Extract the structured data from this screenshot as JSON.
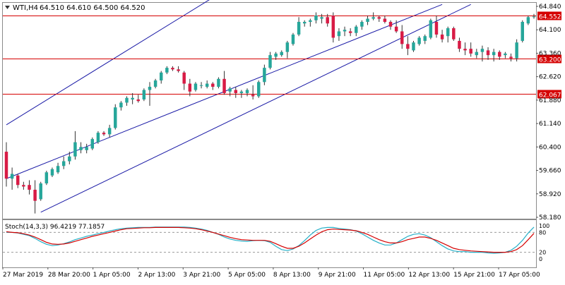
{
  "window": {
    "symbol_label": "WTI,H4",
    "ohlc_readout": "64.510 64.610 64.500 64.520",
    "stoch_label": "Stoch(14,3,3) 96.4219 77.1857"
  },
  "colors": {
    "bull": "#26a69a",
    "bear": "#d81b45",
    "wick": "#333333",
    "channel": "#1a1aa6",
    "hline": "#d50000",
    "stoch_main": "#26b0c8",
    "stoch_signal": "#d50000",
    "grid": "#cccccc"
  },
  "chart_data": [
    {
      "type": "candlestick",
      "title": "WTI,H4",
      "ylim": [
        58.18,
        64.84
      ],
      "y_ticks": [
        "64.840",
        "64.100",
        "63.360",
        "62.620",
        "61.880",
        "61.140",
        "60.400",
        "59.660",
        "58.920",
        "58.180"
      ],
      "x_ticks": [
        "27 Mar 2019",
        "28 Mar 20:00",
        "1 Apr 05:00",
        "2 Apr 13:00",
        "3 Apr 21:00",
        "5 Apr 05:00",
        "8 Apr 13:00",
        "9 Apr 21:00",
        "11 Apr 05:00",
        "12 Apr 13:00",
        "15 Apr 21:00",
        "17 Apr 05:00"
      ],
      "horizontal_lines": [
        {
          "label": "64.552",
          "value": 64.552
        },
        {
          "label": "63.200",
          "value": 63.2
        },
        {
          "label": "62.067",
          "value": 62.067
        }
      ],
      "channel_lines": [
        {
          "x1": 0,
          "y1": 61.1,
          "x2": 39,
          "y2": 65.45
        },
        {
          "x1": 0,
          "y1": 59.4,
          "x2": 76,
          "y2": 64.9
        },
        {
          "x1": 6,
          "y1": 58.34,
          "x2": 81,
          "y2": 64.9
        }
      ],
      "candles": [
        [
          60.25,
          60.55,
          59.15,
          59.4
        ],
        [
          59.4,
          59.75,
          59.05,
          59.55
        ],
        [
          59.5,
          59.55,
          59.1,
          59.2
        ],
        [
          59.2,
          59.3,
          59.05,
          59.15
        ],
        [
          59.2,
          59.35,
          58.9,
          59.05
        ],
        [
          59.05,
          59.35,
          58.3,
          58.7
        ],
        [
          58.75,
          59.3,
          58.7,
          59.25
        ],
        [
          59.25,
          59.65,
          59.2,
          59.6
        ],
        [
          59.5,
          59.75,
          59.45,
          59.7
        ],
        [
          59.6,
          59.9,
          59.55,
          59.8
        ],
        [
          59.8,
          60.1,
          59.7,
          59.95
        ],
        [
          59.95,
          60.25,
          59.85,
          60.1
        ],
        [
          60.1,
          60.9,
          60.0,
          60.55
        ],
        [
          60.3,
          60.55,
          60.2,
          60.4
        ],
        [
          60.3,
          60.5,
          60.2,
          60.4
        ],
        [
          60.35,
          60.7,
          60.3,
          60.65
        ],
        [
          60.55,
          60.9,
          60.5,
          60.85
        ],
        [
          60.85,
          60.9,
          60.75,
          60.8
        ],
        [
          60.8,
          61.1,
          60.7,
          61.0
        ],
        [
          61.0,
          61.75,
          60.95,
          61.65
        ],
        [
          61.65,
          61.85,
          61.55,
          61.8
        ],
        [
          61.8,
          62.0,
          61.7,
          61.95
        ],
        [
          61.9,
          62.1,
          61.75,
          61.95
        ],
        [
          61.9,
          62.05,
          61.8,
          61.85
        ],
        [
          61.9,
          62.25,
          61.85,
          62.2
        ],
        [
          62.2,
          62.45,
          61.7,
          62.3
        ],
        [
          62.3,
          62.55,
          62.25,
          62.5
        ],
        [
          62.5,
          62.8,
          62.4,
          62.75
        ],
        [
          62.75,
          62.95,
          62.7,
          62.9
        ],
        [
          62.9,
          62.95,
          62.8,
          62.85
        ],
        [
          62.85,
          62.95,
          62.75,
          62.8
        ],
        [
          62.75,
          62.8,
          62.2,
          62.4
        ],
        [
          62.4,
          62.55,
          62.0,
          62.15
        ],
        [
          62.2,
          62.45,
          62.15,
          62.4
        ],
        [
          62.35,
          62.45,
          62.25,
          62.35
        ],
        [
          62.3,
          62.5,
          62.25,
          62.4
        ],
        [
          62.4,
          62.45,
          62.2,
          62.3
        ],
        [
          62.3,
          62.6,
          62.25,
          62.55
        ],
        [
          62.55,
          62.8,
          62.05,
          62.1
        ],
        [
          62.15,
          62.3,
          62.0,
          62.25
        ],
        [
          62.2,
          62.3,
          61.95,
          62.1
        ],
        [
          62.1,
          62.2,
          61.95,
          62.15
        ],
        [
          62.1,
          62.25,
          62.0,
          62.2
        ],
        [
          62.05,
          62.35,
          61.9,
          62.0
        ],
        [
          62.0,
          62.5,
          61.95,
          62.45
        ],
        [
          62.45,
          63.0,
          62.35,
          62.9
        ],
        [
          62.9,
          63.4,
          62.85,
          63.3
        ],
        [
          63.25,
          63.4,
          63.15,
          63.35
        ],
        [
          63.3,
          63.45,
          63.25,
          63.4
        ],
        [
          63.4,
          63.75,
          63.2,
          63.7
        ],
        [
          63.65,
          64.0,
          63.6,
          63.95
        ],
        [
          63.95,
          64.5,
          63.9,
          64.35
        ],
        [
          64.3,
          64.4,
          64.2,
          64.35
        ],
        [
          64.35,
          64.45,
          64.2,
          64.4
        ],
        [
          64.4,
          64.65,
          64.3,
          64.55
        ],
        [
          64.45,
          64.6,
          64.3,
          64.5
        ],
        [
          64.5,
          64.6,
          64.2,
          64.3
        ],
        [
          64.55,
          64.65,
          63.7,
          63.85
        ],
        [
          63.9,
          64.15,
          63.75,
          64.05
        ],
        [
          64.05,
          64.2,
          63.9,
          64.1
        ],
        [
          64.05,
          64.15,
          63.9,
          64.0
        ],
        [
          64.0,
          64.25,
          63.9,
          64.2
        ],
        [
          64.2,
          64.4,
          64.1,
          64.35
        ],
        [
          64.35,
          64.55,
          64.25,
          64.45
        ],
        [
          64.45,
          64.65,
          64.4,
          64.5
        ],
        [
          64.5,
          64.55,
          64.35,
          64.45
        ],
        [
          64.45,
          64.55,
          64.3,
          64.35
        ],
        [
          64.35,
          64.4,
          64.1,
          64.2
        ],
        [
          64.2,
          64.4,
          64.0,
          64.05
        ],
        [
          64.05,
          64.25,
          63.5,
          63.65
        ],
        [
          63.65,
          63.9,
          63.3,
          63.5
        ],
        [
          63.45,
          63.75,
          63.4,
          63.7
        ],
        [
          63.65,
          63.9,
          63.6,
          63.85
        ],
        [
          63.75,
          63.95,
          63.65,
          63.9
        ],
        [
          63.85,
          64.45,
          63.8,
          64.4
        ],
        [
          64.35,
          64.55,
          63.85,
          63.95
        ],
        [
          63.95,
          64.1,
          63.7,
          63.8
        ],
        [
          63.9,
          64.2,
          63.7,
          64.15
        ],
        [
          64.15,
          64.2,
          63.75,
          63.8
        ],
        [
          63.75,
          63.85,
          63.4,
          63.5
        ],
        [
          63.5,
          63.7,
          63.3,
          63.45
        ],
        [
          63.5,
          63.7,
          63.25,
          63.35
        ],
        [
          63.3,
          63.5,
          63.2,
          63.4
        ],
        [
          63.4,
          63.6,
          63.1,
          63.5
        ],
        [
          63.45,
          63.55,
          63.15,
          63.3
        ],
        [
          63.3,
          63.5,
          63.1,
          63.4
        ],
        [
          63.4,
          63.45,
          63.15,
          63.25
        ],
        [
          63.3,
          63.4,
          63.2,
          63.35
        ],
        [
          63.25,
          63.35,
          63.1,
          63.2
        ],
        [
          63.2,
          63.8,
          63.1,
          63.7
        ],
        [
          63.75,
          64.4,
          63.7,
          64.35
        ],
        [
          64.3,
          64.55,
          64.25,
          64.5
        ],
        [
          64.5,
          64.6,
          64.45,
          64.52
        ]
      ]
    },
    {
      "type": "line",
      "title": "Stoch(14,3,3) 96.4219 77.1857",
      "ylim": [
        0,
        100
      ],
      "y_ticks": [
        "100",
        "80",
        "20",
        "0"
      ],
      "levels": [
        80,
        20
      ],
      "series": [
        {
          "values": [
            80,
            80,
            78,
            74,
            70,
            62,
            52,
            44,
            40,
            42,
            46,
            51,
            58,
            63,
            68,
            72,
            76,
            80,
            84,
            88,
            91,
            93,
            94,
            95,
            95,
            95,
            96,
            96,
            96,
            96,
            96,
            96,
            95,
            93,
            90,
            86,
            80,
            74,
            66,
            60,
            56,
            54,
            53,
            55,
            56,
            55,
            50,
            38,
            28,
            25,
            30,
            40,
            55,
            72,
            86,
            93,
            95,
            95,
            92,
            90,
            88,
            84,
            76,
            66,
            56,
            48,
            42,
            42,
            48,
            58,
            68,
            74,
            76,
            72,
            64,
            52,
            40,
            30,
            24,
            22,
            22,
            20,
            20,
            20,
            18,
            17,
            18,
            20,
            26,
            38,
            56,
            78,
            96
          ]
        },
        {
          "values": [
            82,
            80,
            79,
            76,
            72,
            66,
            58,
            50,
            45,
            44,
            45,
            48,
            53,
            58,
            63,
            68,
            72,
            76,
            80,
            84,
            88,
            91,
            92,
            93,
            94,
            94,
            95,
            95,
            95,
            95,
            95,
            94,
            93,
            91,
            88,
            84,
            80,
            75,
            70,
            65,
            61,
            58,
            57,
            56,
            56,
            56,
            53,
            46,
            38,
            32,
            32,
            38,
            48,
            60,
            72,
            82,
            88,
            90,
            89,
            88,
            87,
            85,
            80,
            74,
            66,
            58,
            52,
            48,
            48,
            52,
            58,
            62,
            66,
            66,
            62,
            56,
            48,
            40,
            32,
            28,
            26,
            24,
            23,
            22,
            21,
            20,
            20,
            20,
            22,
            28,
            40,
            58,
            77
          ]
        }
      ]
    }
  ]
}
